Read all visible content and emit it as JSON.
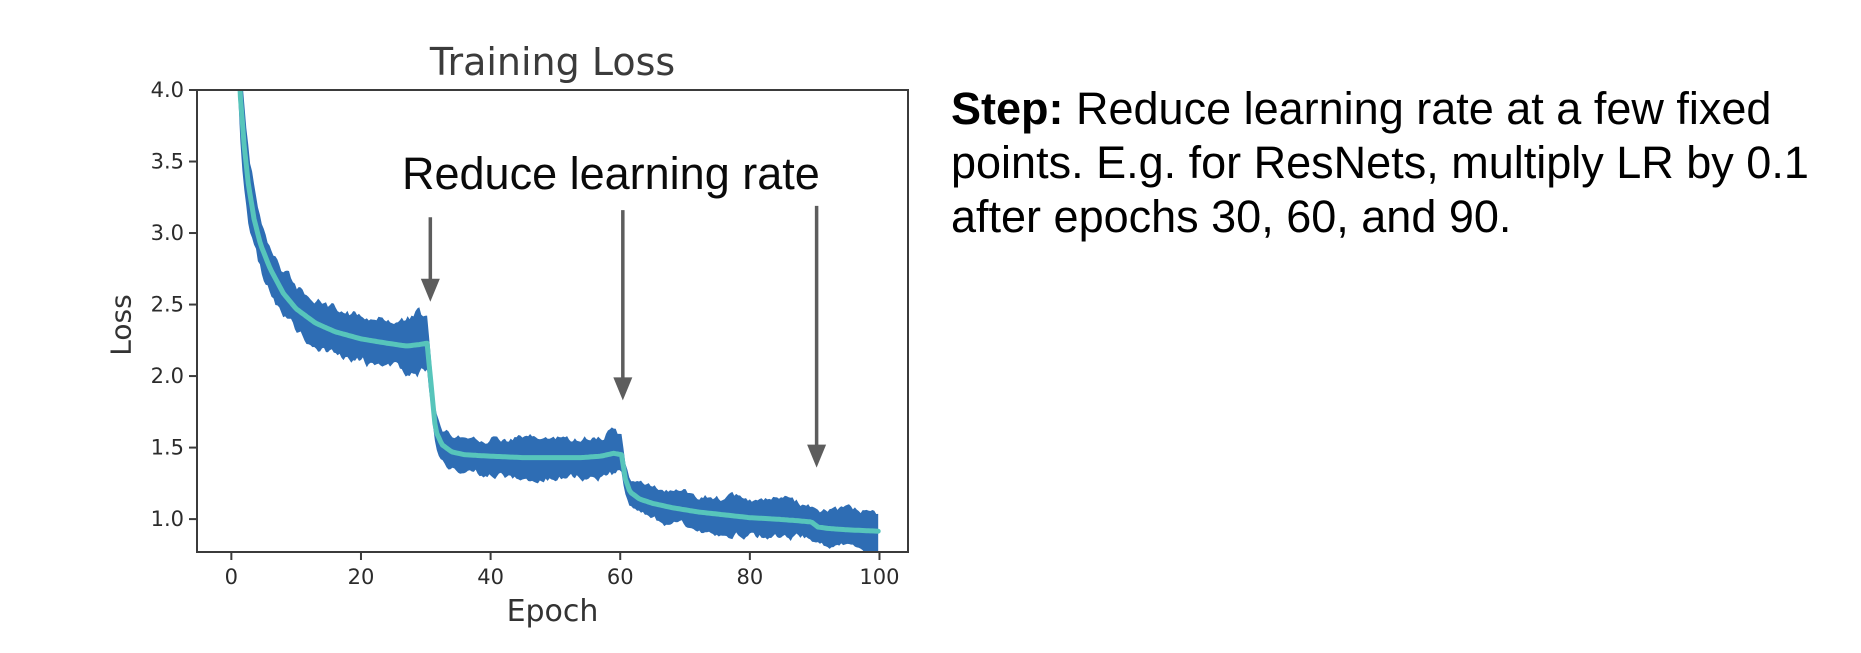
{
  "figure": {
    "title": "Training Loss",
    "xlabel": "Epoch",
    "ylabel": "Loss",
    "annotation": "Reduce learning rate"
  },
  "note": {
    "prefix": "Step:",
    "line1_rest": " Reduce learning rate at a few fixed",
    "line2": "points. E.g. for ResNets, multiply LR by 0.1",
    "line3": "after epochs 30, 60, and 90."
  },
  "colors": {
    "band": "#2e6db4",
    "mean_line": "#57c5bb",
    "spine": "#3b3b3b",
    "tick_label": "#2b2b2b",
    "arrow": "#5d5d5d"
  },
  "chart_data": {
    "type": "line",
    "title": "Training Loss",
    "xlabel": "Epoch",
    "ylabel": "Loss",
    "xlim": [
      -5.3,
      104.4
    ],
    "ylim": [
      0.77,
      4.0
    ],
    "xticks": [
      0,
      20,
      40,
      60,
      80,
      100
    ],
    "yticks": [
      1.0,
      1.5,
      2.0,
      2.5,
      3.0,
      3.5,
      4.0
    ],
    "grid": false,
    "legend": "none",
    "lr_drop_epochs": [
      30,
      60,
      90
    ],
    "series": [
      {
        "name": "loss_mean",
        "x": [
          0.3,
          0.8,
          1.4,
          2,
          2.6,
          3.5,
          4.5,
          6,
          8,
          10,
          13,
          16,
          20,
          24,
          27,
          29,
          30.2,
          30.8,
          31.5,
          32.5,
          34,
          36,
          40,
          45,
          50,
          54,
          57,
          59,
          60.2,
          60.8,
          61.5,
          63,
          65,
          68,
          72,
          76,
          80,
          84,
          87,
          89.5,
          90.5,
          92,
          95,
          100
        ],
        "y": [
          5.4,
          4.55,
          3.95,
          3.6,
          3.35,
          3.1,
          2.92,
          2.75,
          2.58,
          2.47,
          2.37,
          2.31,
          2.26,
          2.23,
          2.21,
          2.22,
          2.23,
          1.95,
          1.62,
          1.52,
          1.47,
          1.45,
          1.44,
          1.43,
          1.43,
          1.43,
          1.44,
          1.46,
          1.45,
          1.28,
          1.19,
          1.14,
          1.11,
          1.08,
          1.05,
          1.03,
          1.01,
          1.0,
          0.99,
          0.98,
          0.945,
          0.935,
          0.925,
          0.915
        ]
      }
    ],
    "noise_band": {
      "x": [
        0.3,
        2,
        3.5,
        5,
        8,
        12,
        18,
        26,
        29,
        30.5,
        31.5,
        34,
        40,
        50,
        56,
        59,
        60.5,
        61.5,
        65,
        72,
        80,
        86,
        89,
        91,
        95,
        100
      ],
      "half_width": [
        0.35,
        0.3,
        0.25,
        0.2,
        0.17,
        0.16,
        0.17,
        0.18,
        0.22,
        0.16,
        0.11,
        0.13,
        0.14,
        0.14,
        0.15,
        0.17,
        0.12,
        0.1,
        0.12,
        0.13,
        0.13,
        0.14,
        0.13,
        0.12,
        0.13,
        0.15
      ]
    },
    "arrows": [
      {
        "x": 30.7,
        "y_from": 3.11,
        "y_to": 2.52
      },
      {
        "x": 60.4,
        "y_from": 3.16,
        "y_to": 1.83
      },
      {
        "x": 90.3,
        "y_from": 3.19,
        "y_to": 1.36
      }
    ]
  }
}
